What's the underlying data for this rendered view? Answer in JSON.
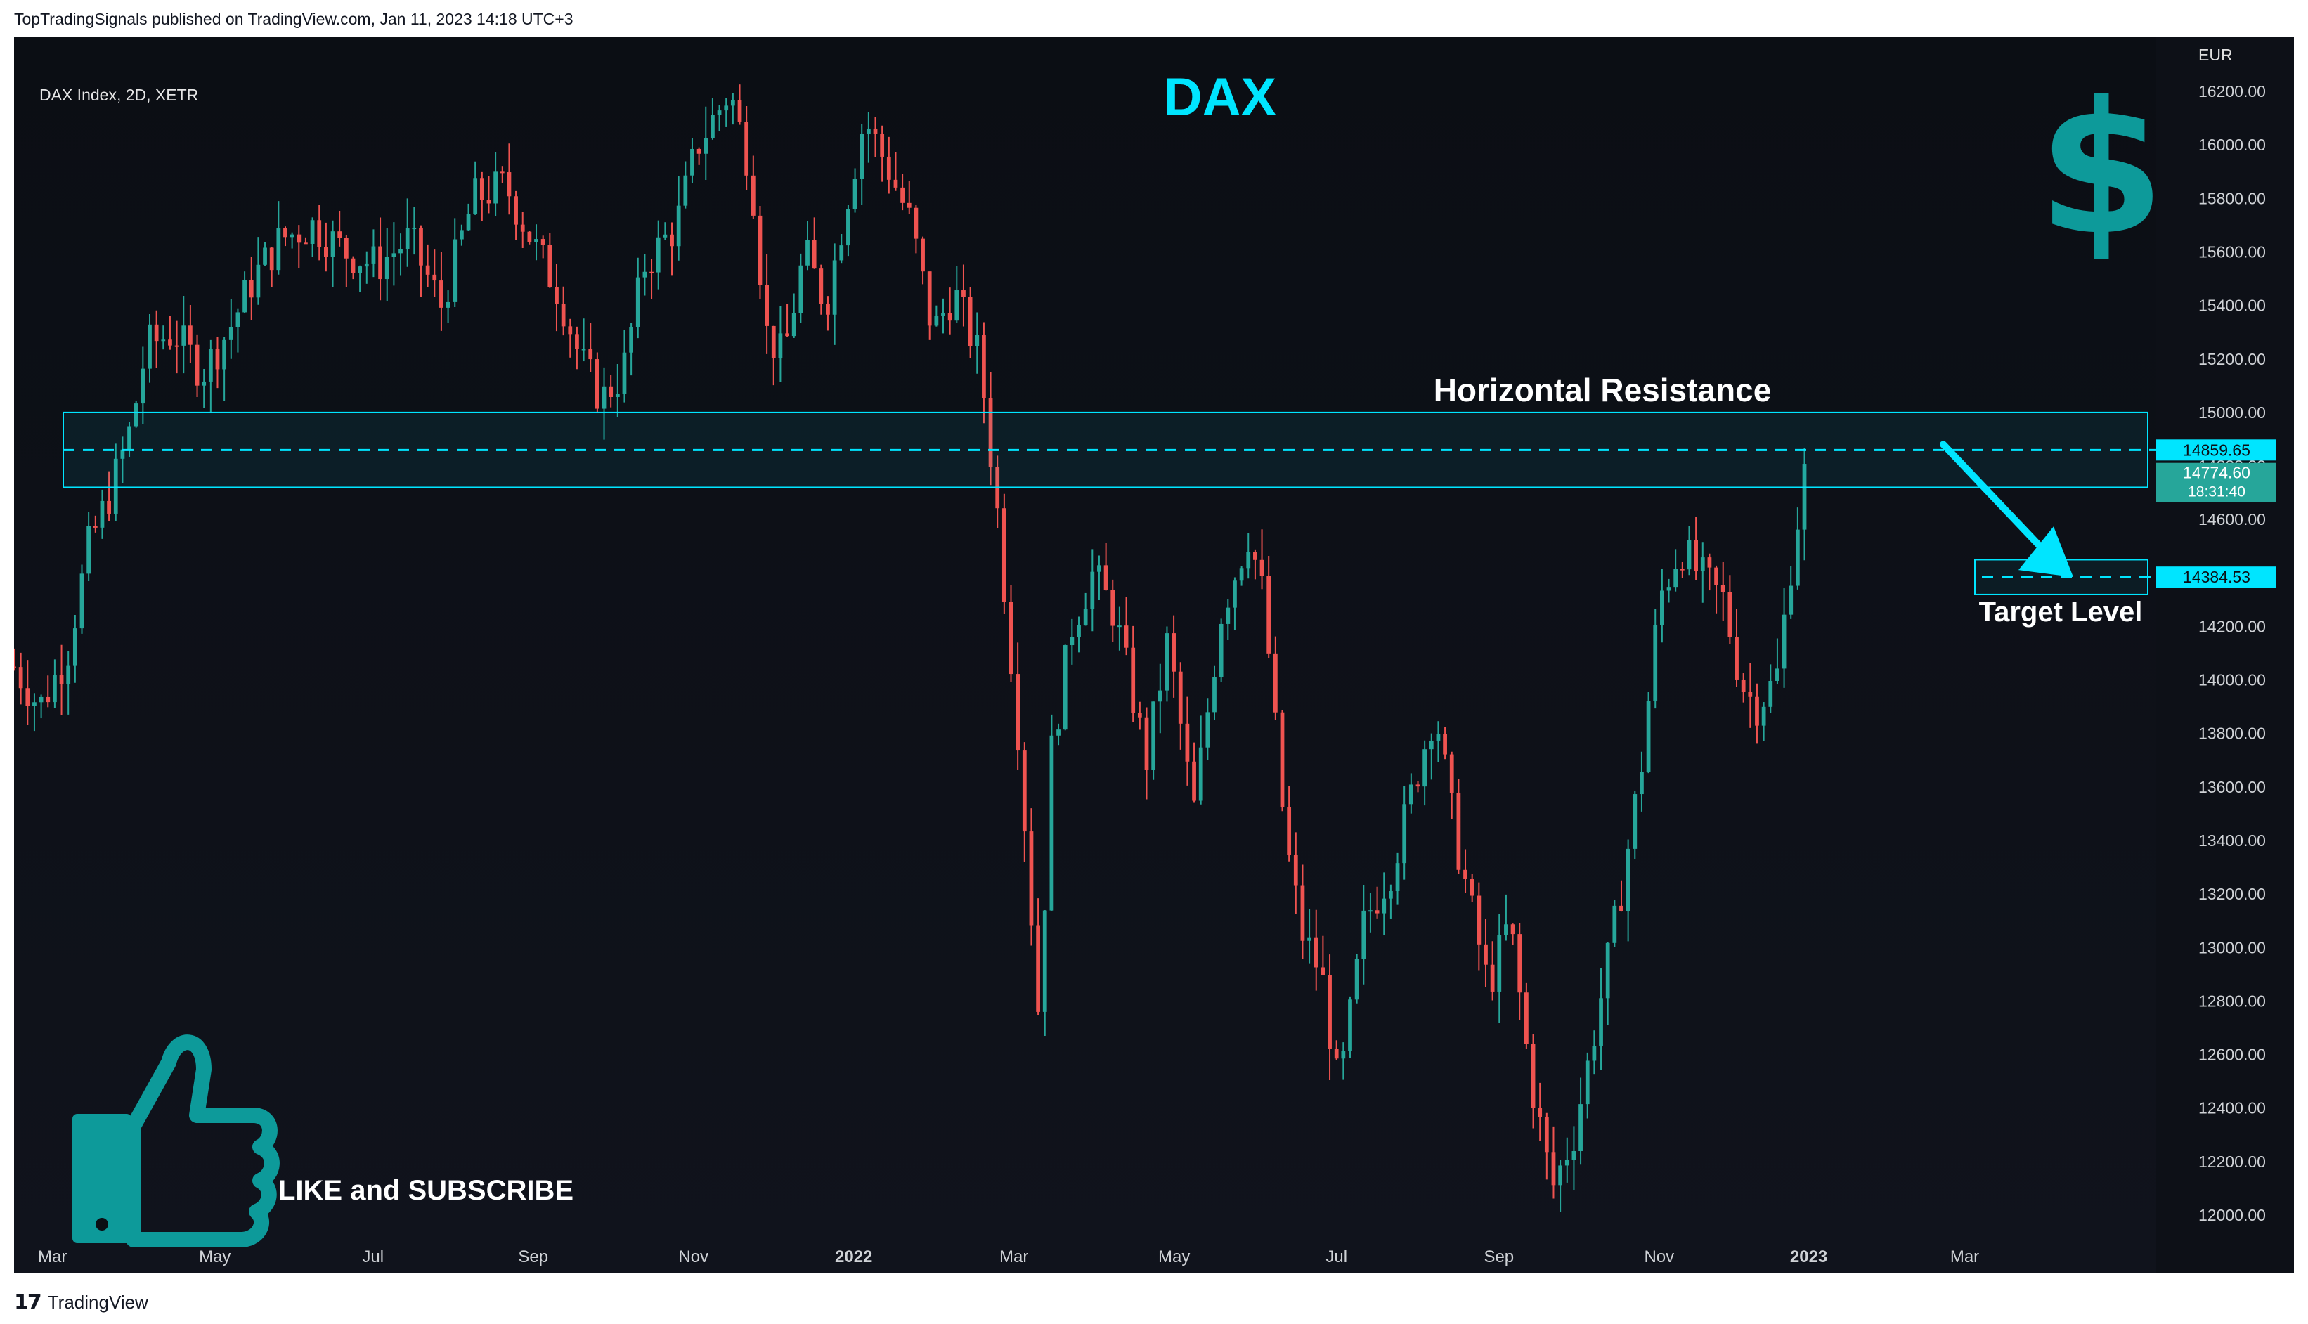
{
  "header": {
    "published": "TopTradingSignals published on TradingView.com, Jan 11, 2023 14:18 UTC+3"
  },
  "footer": {
    "brand": "TradingView"
  },
  "colors": {
    "up": "#26a69a",
    "down": "#ef5350",
    "accent": "#00e5ff",
    "teal": "#0d9a9a",
    "bg": "#0b0e14"
  },
  "icons": [
    "dollar-sign-icon",
    "thumbs-up-icon",
    "tradingview-logo-icon"
  ],
  "cta": {
    "text": "LIKE and SUBSCRIBE"
  },
  "chart_data": {
    "type": "candlestick",
    "title": "DAX Index, 2D, XETR",
    "headline": "DAX",
    "currency": "EUR",
    "ylim": [
      11900,
      16300
    ],
    "yticks": [
      12000,
      12200,
      12400,
      12600,
      12800,
      13000,
      13200,
      13400,
      13600,
      13800,
      14000,
      14200,
      14400,
      14600,
      14800,
      15000,
      15200,
      15400,
      15600,
      15800,
      16000,
      16200
    ],
    "ytick_labels": [
      "12000.00",
      "12200.00",
      "12400.00",
      "12600.00",
      "12800.00",
      "13000.00",
      "13200.00",
      "13400.00",
      "13600.00",
      "13800.00",
      "14000.00",
      "14200.00",
      "14400.00",
      "14600.00",
      "14800.00",
      "15000.00",
      "15200.00",
      "15400.00",
      "15600.00",
      "15800.00",
      "16000.00",
      "16200.00"
    ],
    "xlabels": [
      {
        "label": "Mar",
        "t": 0.018
      },
      {
        "label": "May",
        "t": 0.094
      },
      {
        "label": "Jul",
        "t": 0.168
      },
      {
        "label": "Sep",
        "t": 0.243
      },
      {
        "label": "Nov",
        "t": 0.318
      },
      {
        "label": "2022",
        "t": 0.393,
        "bold": true
      },
      {
        "label": "Mar",
        "t": 0.468
      },
      {
        "label": "May",
        "t": 0.543
      },
      {
        "label": "Jul",
        "t": 0.619
      },
      {
        "label": "Sep",
        "t": 0.695
      },
      {
        "label": "Nov",
        "t": 0.77
      },
      {
        "label": "2023",
        "t": 0.84,
        "bold": true
      },
      {
        "label": "Mar",
        "t": 0.913
      }
    ],
    "path_anchors": [
      [
        0.0,
        14050
      ],
      [
        0.012,
        13900
      ],
      [
        0.025,
        14100
      ],
      [
        0.035,
        14500
      ],
      [
        0.045,
        14700
      ],
      [
        0.055,
        14950
      ],
      [
        0.062,
        15250
      ],
      [
        0.075,
        15300
      ],
      [
        0.088,
        15150
      ],
      [
        0.1,
        15300
      ],
      [
        0.112,
        15500
      ],
      [
        0.125,
        15650
      ],
      [
        0.14,
        15700
      ],
      [
        0.155,
        15600
      ],
      [
        0.17,
        15550
      ],
      [
        0.185,
        15650
      ],
      [
        0.2,
        15400
      ],
      [
        0.215,
        15800
      ],
      [
        0.23,
        15850
      ],
      [
        0.245,
        15600
      ],
      [
        0.255,
        15450
      ],
      [
        0.265,
        15200
      ],
      [
        0.275,
        15050
      ],
      [
        0.285,
        15150
      ],
      [
        0.295,
        15550
      ],
      [
        0.31,
        15700
      ],
      [
        0.32,
        16000
      ],
      [
        0.335,
        16200
      ],
      [
        0.345,
        15900
      ],
      [
        0.352,
        15300
      ],
      [
        0.36,
        15200
      ],
      [
        0.37,
        15600
      ],
      [
        0.38,
        15400
      ],
      [
        0.39,
        15800
      ],
      [
        0.398,
        16100
      ],
      [
        0.41,
        15900
      ],
      [
        0.42,
        15700
      ],
      [
        0.43,
        15300
      ],
      [
        0.44,
        15450
      ],
      [
        0.452,
        15200
      ],
      [
        0.46,
        14650
      ],
      [
        0.47,
        13800
      ],
      [
        0.48,
        12700
      ],
      [
        0.485,
        13700
      ],
      [
        0.495,
        14200
      ],
      [
        0.505,
        14400
      ],
      [
        0.515,
        14250
      ],
      [
        0.53,
        13700
      ],
      [
        0.54,
        14150
      ],
      [
        0.552,
        13500
      ],
      [
        0.565,
        14250
      ],
      [
        0.578,
        14550
      ],
      [
        0.585,
        14300
      ],
      [
        0.595,
        13400
      ],
      [
        0.603,
        13050
      ],
      [
        0.612,
        12900
      ],
      [
        0.62,
        12450
      ],
      [
        0.632,
        13100
      ],
      [
        0.645,
        13300
      ],
      [
        0.655,
        13600
      ],
      [
        0.665,
        13900
      ],
      [
        0.675,
        13400
      ],
      [
        0.69,
        12850
      ],
      [
        0.7,
        13100
      ],
      [
        0.71,
        12500
      ],
      [
        0.72,
        12100
      ],
      [
        0.73,
        12300
      ],
      [
        0.74,
        12700
      ],
      [
        0.752,
        13200
      ],
      [
        0.762,
        13700
      ],
      [
        0.77,
        14300
      ],
      [
        0.78,
        14500
      ],
      [
        0.788,
        14400
      ],
      [
        0.8,
        14300
      ],
      [
        0.808,
        14000
      ],
      [
        0.815,
        13900
      ],
      [
        0.825,
        14000
      ],
      [
        0.832,
        14450
      ],
      [
        0.838,
        14770
      ]
    ],
    "current_price": "14774.60",
    "countdown": "18:31:40",
    "annotations": {
      "resistance_label": "Horizontal Resistance",
      "resistance_level": 14859.65,
      "resistance_price": "14859.65",
      "resistance_zone": [
        14720,
        15000
      ],
      "target_label": "Target Level",
      "target_level": 14384.53,
      "target_price": "14384.53"
    }
  }
}
